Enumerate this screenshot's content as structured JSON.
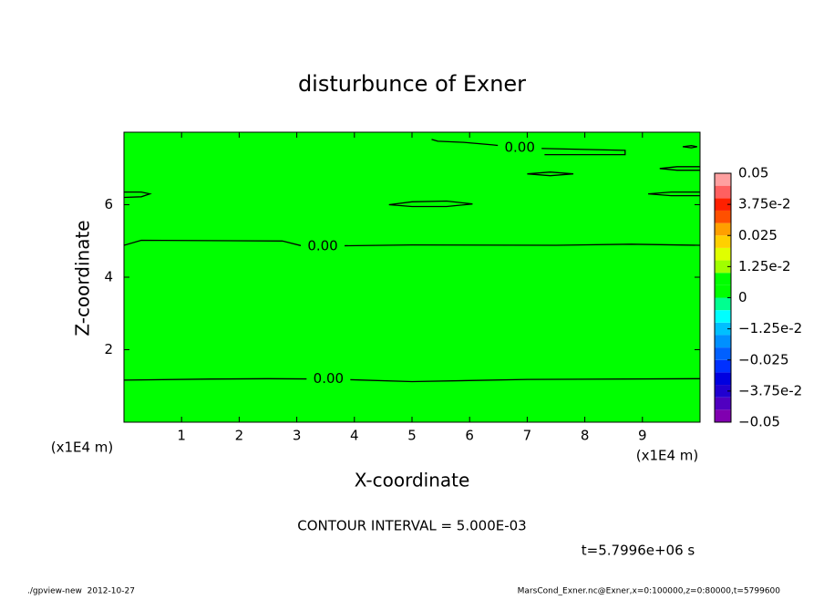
{
  "chart_data": {
    "type": "contour",
    "title": "disturbunce of Exner",
    "x_label": "X-coordinate",
    "y_label": "Z-coordinate",
    "x_unit": "(x1E4 m)",
    "y_unit": "(x1E4 m)",
    "interval_note": "CONTOUR INTERVAL = 5.000E-03",
    "time_note": "t=5.7996e+06 s",
    "footer_left": "./gpview-new  2012-10-27",
    "footer_right": "MarsCond_Exner.nc@Exner,x=0:100000,z=0:80000,t=5799600",
    "xlim": [
      0,
      10
    ],
    "ylim": [
      0,
      8
    ],
    "xticks": [
      1,
      2,
      3,
      4,
      5,
      6,
      7,
      8,
      9
    ],
    "yticks": [
      2,
      4,
      6
    ],
    "fill_color": "#00ff00",
    "line_color": "#000000",
    "contours": [
      {
        "label": "0.00",
        "x": [
          0,
          1.5,
          2.5,
          3.55,
          5,
          7,
          10
        ],
        "y": [
          1.16,
          1.19,
          1.2,
          1.19,
          1.12,
          1.18,
          1.2
        ]
      },
      {
        "label": "0.00",
        "x": [
          0,
          0.3,
          2.75,
          3.1,
          3.45,
          5,
          7.5,
          8.8,
          10
        ],
        "y": [
          4.88,
          5.02,
          5.0,
          4.86,
          4.86,
          4.89,
          4.88,
          4.91,
          4.88
        ]
      },
      {
        "label": "0.00",
        "x": [
          5.34,
          5.45,
          5.9,
          6.4,
          6.87,
          7.3,
          8.7,
          8.7,
          7.3
        ],
        "y": [
          7.8,
          7.75,
          7.72,
          7.65,
          7.57,
          7.55,
          7.5,
          7.38,
          7.38
        ]
      },
      {
        "x": [
          4.6,
          5.0,
          5.6,
          6.05,
          5.6,
          5.0,
          4.6
        ],
        "y": [
          6.0,
          6.08,
          6.1,
          6.02,
          5.95,
          5.95,
          6.0
        ]
      },
      {
        "x": [
          7.0,
          7.4,
          7.8,
          7.4,
          7.0
        ],
        "y": [
          6.85,
          6.9,
          6.85,
          6.8,
          6.85
        ]
      },
      {
        "x": [
          0,
          0.3,
          0.45,
          0.3,
          0
        ],
        "y": [
          6.35,
          6.35,
          6.3,
          6.22,
          6.2
        ]
      },
      {
        "x": [
          10,
          9.5,
          9.1,
          9.5,
          10
        ],
        "y": [
          6.35,
          6.35,
          6.3,
          6.25,
          6.25
        ]
      },
      {
        "x": [
          10,
          9.6,
          9.3,
          9.6,
          10
        ],
        "y": [
          7.05,
          7.05,
          7.0,
          6.95,
          6.95
        ]
      },
      {
        "x": [
          9.7,
          9.85,
          9.95,
          9.85,
          9.7
        ],
        "y": [
          7.6,
          7.63,
          7.6,
          7.57,
          7.6
        ]
      }
    ],
    "colorbar": {
      "levels": [
        -0.05,
        -0.045,
        -0.04,
        -0.035,
        -0.03,
        -0.025,
        -0.02,
        -0.015,
        -0.01,
        -0.005,
        0,
        0.005,
        0.01,
        0.015,
        0.02,
        0.025,
        0.03,
        0.035,
        0.04,
        0.045,
        0.05
      ],
      "colors": [
        "#8000b0",
        "#5000c0",
        "#2000d0",
        "#0000e0",
        "#0030ff",
        "#0060ff",
        "#0090ff",
        "#00c0ff",
        "#00ffff",
        "#00ff90",
        "#00ff00",
        "#00ff00",
        "#a0ff00",
        "#e0ff00",
        "#ffd000",
        "#ffa000",
        "#ff5000",
        "#ff2000",
        "#ff6060",
        "#ffa0a0"
      ],
      "ticks": [
        {
          "value": 0.05,
          "label": "0.05"
        },
        {
          "value": 0.0375,
          "label": "3.75e-2"
        },
        {
          "value": 0.025,
          "label": "0.025"
        },
        {
          "value": 0.0125,
          "label": "1.25e-2"
        },
        0,
        {
          "value": -0.0125,
          "label": "−1.25e-2"
        },
        {
          "value": -0.025,
          "label": "−0.025"
        },
        {
          "value": -0.0375,
          "label": "−3.75e-2"
        },
        {
          "value": -0.05,
          "label": "−0.05"
        }
      ]
    }
  }
}
